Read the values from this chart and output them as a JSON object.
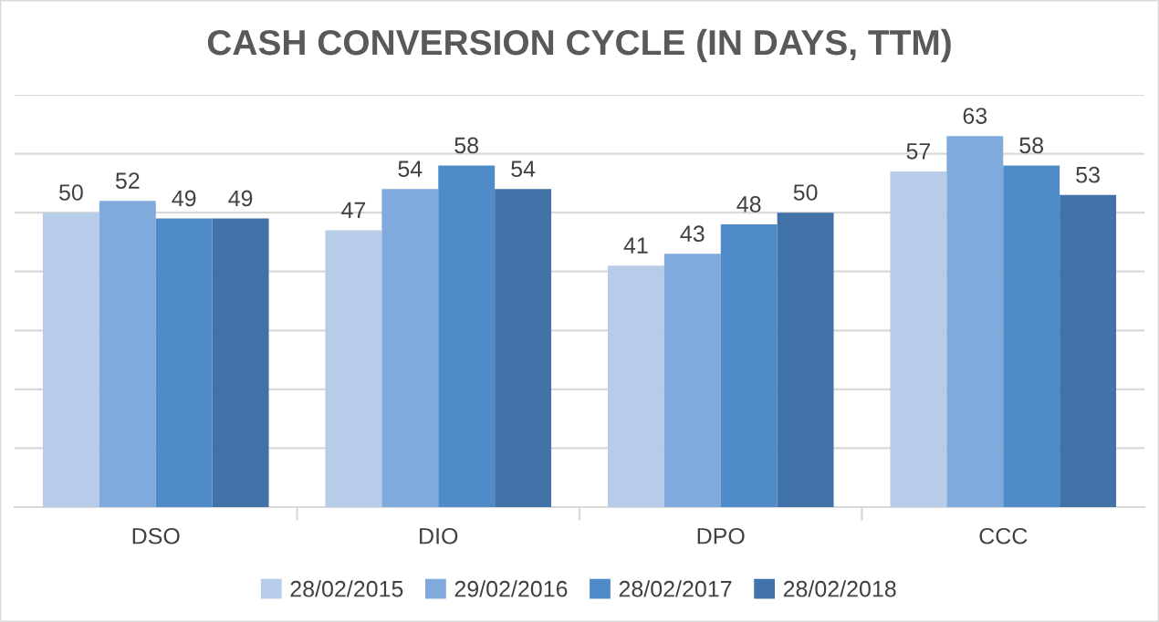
{
  "chart_data": {
    "type": "bar",
    "title": "CASH CONVERSION CYCLE (IN DAYS, TTM)",
    "categories": [
      "DSO",
      "DIO",
      "DPO",
      "CCC"
    ],
    "series": [
      {
        "name": "28/02/2015",
        "color": "#b7cce9",
        "values": [
          50,
          47,
          41,
          57
        ]
      },
      {
        "name": "29/02/2016",
        "color": "#80a9dc",
        "values": [
          52,
          54,
          43,
          63
        ]
      },
      {
        "name": "28/02/2017",
        "color": "#4f8bc9",
        "values": [
          49,
          58,
          48,
          58
        ]
      },
      {
        "name": "28/02/2018",
        "color": "#4273a8",
        "values": [
          49,
          54,
          50,
          53
        ]
      }
    ],
    "ylim": [
      0,
      70
    ],
    "yticks": [
      {
        "value": 0,
        "label": null
      },
      {
        "value": 10,
        "label": null
      },
      {
        "value": 20,
        "label": null
      },
      {
        "value": 30,
        "label": null
      },
      {
        "value": 40,
        "label": null
      },
      {
        "value": 50,
        "label": null
      },
      {
        "value": 60,
        "label": null
      },
      {
        "value": 70,
        "label": null
      }
    ],
    "tick_labels": "x",
    "grid": "y",
    "data_labels": true,
    "legend": "bottom"
  }
}
